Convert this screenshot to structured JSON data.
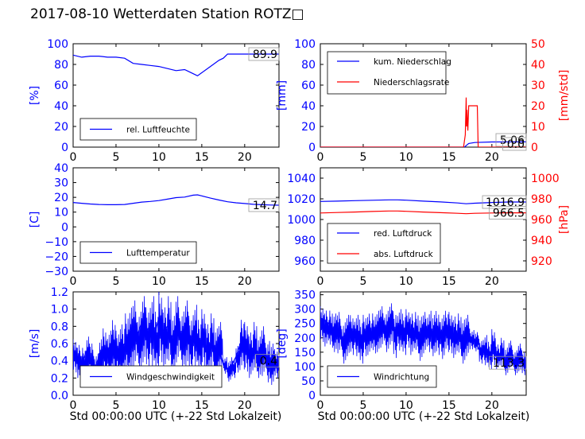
{
  "figure": {
    "title": "2017-08-10 Wetterdaten Station ROTZ□",
    "xlabel": "Std 00:00:00 UTC (+-22 Std Lokalzeit)"
  },
  "colors": {
    "blue": "#0000ff",
    "red": "#ff0000"
  },
  "chart_data": [
    {
      "type": "line",
      "id": "humidity",
      "ylabel": "[%]",
      "xlim": [
        0,
        24
      ],
      "xticks": [
        0,
        5,
        10,
        15,
        20
      ],
      "ylim": [
        0,
        100
      ],
      "yticks": [
        0,
        20,
        40,
        60,
        80,
        100
      ],
      "legend_position": "lower-left",
      "value_label": "89.9",
      "series": [
        {
          "name": "rel. Luftfeuchte",
          "color": "#0000ff",
          "axis": "left",
          "x": [
            0,
            1,
            2,
            3,
            4,
            5,
            6,
            7,
            8,
            9,
            10,
            11,
            12,
            13,
            13.5,
            14,
            14.5,
            15,
            16,
            17,
            17.5,
            18,
            19,
            20,
            21,
            22,
            23,
            24
          ],
          "y": [
            89,
            87,
            88,
            88,
            87,
            87,
            86,
            81,
            80,
            79,
            78,
            76,
            74,
            75,
            73,
            71,
            69,
            72,
            78,
            84,
            86,
            90,
            90,
            90,
            90,
            90,
            90,
            90
          ]
        }
      ]
    },
    {
      "type": "line",
      "id": "precipitation",
      "ylabel": "[mm]",
      "ylabel_right": "[mm/std]",
      "xlim": [
        0,
        24
      ],
      "xticks": [
        0,
        5,
        10,
        15,
        20
      ],
      "ylim": [
        0,
        100
      ],
      "yticks": [
        0,
        20,
        40,
        60,
        80,
        100
      ],
      "ylim_right": [
        0,
        50
      ],
      "yticks_right": [
        0,
        10,
        20,
        30,
        40,
        50
      ],
      "legend_position": "top-left",
      "value_label": "5.06",
      "value_label_right": "0.0",
      "series": [
        {
          "name": "kum. Niederschlag",
          "color": "#0000ff",
          "axis": "left",
          "x": [
            0,
            16.8,
            17.0,
            17.3,
            18,
            20,
            24
          ],
          "y": [
            0,
            0,
            1.5,
            3.5,
            4.5,
            5.0,
            5.06
          ]
        },
        {
          "name": "Niederschlagsrate",
          "color": "#ff0000",
          "axis": "right",
          "x": [
            0,
            16.7,
            16.9,
            17.0,
            17.05,
            17.1,
            17.15,
            17.2,
            17.3,
            17.4,
            17.6,
            18.3,
            18.4,
            24
          ],
          "y": [
            0,
            0,
            6,
            24,
            10,
            18,
            12,
            8,
            20,
            20,
            20,
            20,
            0,
            0
          ]
        }
      ]
    },
    {
      "type": "line",
      "id": "temperature",
      "ylabel": "[C]",
      "xlim": [
        0,
        24
      ],
      "xticks": [
        0,
        5,
        10,
        15,
        20
      ],
      "ylim": [
        -30,
        40
      ],
      "yticks": [
        -30,
        -20,
        -10,
        0,
        10,
        20,
        30,
        40
      ],
      "legend_position": "lower-left",
      "value_label": "14.7",
      "series": [
        {
          "name": "Lufttemperatur",
          "color": "#0000ff",
          "axis": "left",
          "x": [
            0,
            1,
            2,
            3,
            4,
            5,
            6,
            7,
            8,
            9,
            10,
            11,
            12,
            13,
            14,
            14.5,
            15,
            16,
            17,
            18,
            19,
            20,
            21,
            22,
            23,
            24
          ],
          "y": [
            16.5,
            16,
            15.5,
            15.2,
            15,
            15,
            15.2,
            16,
            16.8,
            17.2,
            17.8,
            18.8,
            19.8,
            20.2,
            21.5,
            21.7,
            21,
            19.5,
            18.2,
            17,
            16.3,
            15.8,
            15.3,
            15,
            14.8,
            14.7
          ]
        }
      ]
    },
    {
      "type": "line",
      "id": "pressure",
      "ylabel_right": "[hPa]",
      "xlim": [
        0,
        24
      ],
      "xticks": [
        0,
        5,
        10,
        15,
        20
      ],
      "ylim": [
        950,
        1050
      ],
      "yticks": [
        960,
        980,
        1000,
        1020,
        1040
      ],
      "ylim_right": [
        910,
        1010
      ],
      "yticks_right": [
        920,
        940,
        960,
        980,
        1000
      ],
      "legend_position": "lower-left",
      "value_label": "1016.9",
      "value_label_right": "966.5",
      "series": [
        {
          "name": "red. Luftdruck",
          "color": "#0000ff",
          "axis": "left",
          "x": [
            0,
            2,
            4,
            6,
            8,
            9,
            10,
            12,
            14,
            16,
            17,
            18,
            20,
            22,
            24
          ],
          "y": [
            1017.5,
            1017.8,
            1018.2,
            1018.6,
            1019,
            1019,
            1018.7,
            1017.8,
            1017,
            1016,
            1015.2,
            1015.8,
            1016.5,
            1016.9,
            1016.9
          ]
        },
        {
          "name": "abs. Luftdruck",
          "color": "#ff0000",
          "axis": "right",
          "x": [
            0,
            2,
            4,
            6,
            8,
            9,
            10,
            12,
            14,
            16,
            17,
            18,
            20,
            22,
            24
          ],
          "y": [
            966.3,
            966.8,
            967.2,
            967.8,
            968.2,
            968.2,
            967.9,
            967.2,
            966.6,
            966,
            965.6,
            966,
            966.3,
            966.5,
            966.5
          ]
        }
      ]
    },
    {
      "type": "line",
      "id": "windspeed",
      "ylabel": "[m/s]",
      "xlim": [
        0,
        24
      ],
      "xticks": [
        0,
        5,
        10,
        15,
        20
      ],
      "ylim": [
        0,
        1.2
      ],
      "yticks": [
        0.0,
        0.2,
        0.4,
        0.6,
        0.8,
        1.0,
        1.2
      ],
      "legend_position": "lower-left",
      "value_label": "0.4",
      "series": [
        {
          "name": "Windgeschwindigkeit",
          "color": "#0000ff",
          "axis": "left",
          "x": [
            0,
            0.5,
            1,
            1.5,
            2,
            2.5,
            3,
            3.5,
            4,
            4.5,
            5,
            5.5,
            6,
            6.5,
            7,
            7.5,
            8,
            8.5,
            9,
            9.5,
            10,
            10.5,
            11,
            11.5,
            12,
            12.5,
            13,
            13.5,
            14,
            14.5,
            15,
            15.5,
            16,
            16.5,
            17,
            17.5,
            18,
            18.5,
            19,
            19.5,
            20,
            20.5,
            21,
            21.5,
            22,
            22.5,
            23,
            23.5,
            24
          ],
          "y": [
            0.4,
            0.45,
            0.35,
            0.5,
            0.4,
            0.3,
            0.45,
            0.55,
            0.5,
            0.6,
            0.5,
            0.55,
            0.6,
            0.7,
            0.8,
            0.7,
            0.85,
            0.75,
            0.8,
            0.7,
            0.9,
            0.75,
            0.8,
            0.65,
            0.8,
            0.7,
            0.75,
            0.65,
            0.7,
            0.6,
            0.65,
            0.55,
            0.6,
            0.5,
            0.55,
            0.35,
            0.3,
            0.35,
            0.45,
            0.6,
            0.55,
            0.5,
            0.55,
            0.45,
            0.5,
            0.4,
            0.35,
            0.4,
            0.4
          ],
          "y_min": [
            0.25,
            0.2,
            0.15,
            0.2,
            0.15,
            0.1,
            0.15,
            0.2,
            0.15,
            0.2,
            0.2,
            0.15,
            0.2,
            0.25,
            0.3,
            0.25,
            0.35,
            0.3,
            0.3,
            0.25,
            0.35,
            0.3,
            0.3,
            0.25,
            0.35,
            0.3,
            0.3,
            0.25,
            0.3,
            0.25,
            0.3,
            0.2,
            0.25,
            0.2,
            0.25,
            0.25,
            0.15,
            0.2,
            0.25,
            0.3,
            0.25,
            0.2,
            0.25,
            0.2,
            0.2,
            0.15,
            0.1,
            0.2,
            0.3
          ],
          "y_max": [
            0.65,
            0.6,
            0.55,
            0.7,
            0.6,
            0.5,
            0.65,
            0.8,
            0.75,
            0.9,
            0.75,
            0.85,
            0.95,
            1.05,
            1.1,
            1.0,
            1.15,
            1.05,
            1.15,
            1.0,
            1.2,
            1.05,
            1.15,
            0.95,
            1.15,
            1.0,
            1.1,
            0.95,
            1.05,
            0.9,
            1.0,
            0.85,
            0.95,
            0.8,
            0.85,
            0.45,
            0.4,
            0.45,
            0.6,
            0.9,
            0.85,
            0.75,
            0.85,
            0.7,
            0.8,
            0.65,
            0.6,
            0.55,
            0.45
          ]
        }
      ]
    },
    {
      "type": "line",
      "id": "winddir",
      "ylabel": "[deg]",
      "xlim": [
        0,
        24
      ],
      "xticks": [
        0,
        5,
        10,
        15,
        20
      ],
      "ylim": [
        0,
        360
      ],
      "yticks": [
        0,
        50,
        100,
        150,
        200,
        250,
        300,
        350
      ],
      "legend_position": "lower-left",
      "value_label": "113.3",
      "series": [
        {
          "name": "Windrichtung",
          "color": "#0000ff",
          "axis": "left",
          "x": [
            0,
            0.5,
            1,
            1.5,
            2,
            2.5,
            3,
            3.5,
            4,
            4.5,
            5,
            5.5,
            6,
            6.5,
            7,
            7.5,
            8,
            8.5,
            9,
            9.5,
            10,
            10.5,
            11,
            11.5,
            12,
            12.5,
            13,
            13.5,
            14,
            14.5,
            15,
            15.5,
            16,
            16.5,
            17,
            17.5,
            18,
            18.5,
            19,
            19.5,
            20,
            20.5,
            21,
            21.5,
            22,
            22.5,
            23,
            23.5,
            24
          ],
          "y": [
            270,
            260,
            250,
            230,
            220,
            200,
            210,
            220,
            215,
            200,
            210,
            220,
            215,
            230,
            240,
            235,
            245,
            225,
            230,
            220,
            235,
            215,
            225,
            210,
            220,
            230,
            215,
            225,
            210,
            230,
            220,
            210,
            215,
            200,
            210,
            200,
            190,
            160,
            150,
            140,
            150,
            135,
            140,
            120,
            130,
            110,
            120,
            110,
            113
          ],
          "y_min": [
            180,
            170,
            160,
            150,
            140,
            110,
            130,
            140,
            130,
            110,
            130,
            140,
            140,
            150,
            160,
            150,
            170,
            130,
            150,
            140,
            160,
            140,
            140,
            120,
            140,
            150,
            130,
            140,
            120,
            150,
            140,
            130,
            130,
            110,
            130,
            160,
            150,
            110,
            100,
            90,
            100,
            90,
            90,
            70,
            90,
            70,
            80,
            70,
            80
          ],
          "y_max": [
            310,
            300,
            295,
            290,
            290,
            260,
            280,
            285,
            280,
            270,
            280,
            290,
            285,
            300,
            310,
            300,
            320,
            300,
            300,
            290,
            300,
            290,
            290,
            280,
            290,
            300,
            280,
            300,
            280,
            300,
            290,
            280,
            285,
            270,
            280,
            230,
            220,
            200,
            210,
            190,
            230,
            180,
            200,
            170,
            190,
            160,
            180,
            160,
            140
          ]
        }
      ]
    }
  ]
}
